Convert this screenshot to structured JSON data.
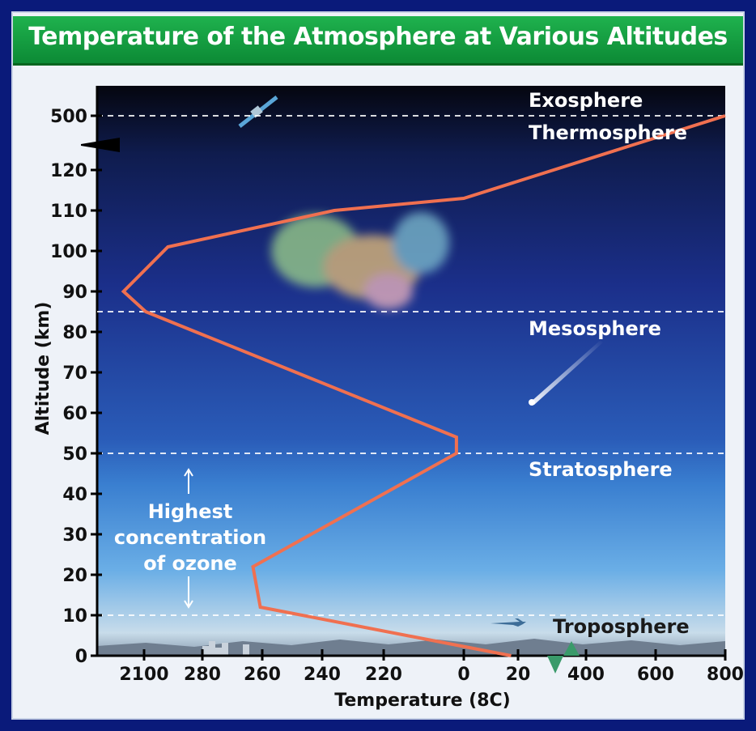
{
  "chart_data": {
    "type": "line",
    "title": "Temperature of the Atmosphere at Various Altitudes",
    "xlabel": "Temperature (8C)",
    "ylabel": "Altitude (km)",
    "x_tick_labels": [
      "2100",
      "280",
      "260",
      "240",
      "220",
      "0",
      "20",
      "400",
      "600",
      "800"
    ],
    "y_tick_labels": [
      "0",
      "10",
      "20",
      "30",
      "40",
      "50",
      "60",
      "70",
      "80",
      "90",
      "100",
      "110",
      "120",
      "500"
    ],
    "series": [
      {
        "points": [
          {
            "x": 18,
            "y": 0
          },
          {
            "x": -55,
            "y": 12
          },
          {
            "x": -57,
            "y": 22
          },
          {
            "x": -2,
            "y": 50
          },
          {
            "x": -2,
            "y": 54
          },
          {
            "x": -86,
            "y": 85
          },
          {
            "x": -92,
            "y": 90
          },
          {
            "x": -80,
            "y": 101
          },
          {
            "x": -35,
            "y": 110
          },
          {
            "x": 0,
            "y": 113
          },
          {
            "x": 800,
            "y": 121
          }
        ]
      }
    ],
    "layer_labels": [
      "Exosphere",
      "Thermosphere",
      "Mesosphere",
      "Stratosphere",
      "Troposphere"
    ],
    "boundaries_km": [
      10,
      50,
      85,
      500
    ],
    "annotation": [
      "Highest",
      "concentration",
      "of ozone"
    ],
    "colors": {
      "line": "#f07050",
      "banner": "#14a040",
      "frame": "#0a1a7a"
    }
  }
}
